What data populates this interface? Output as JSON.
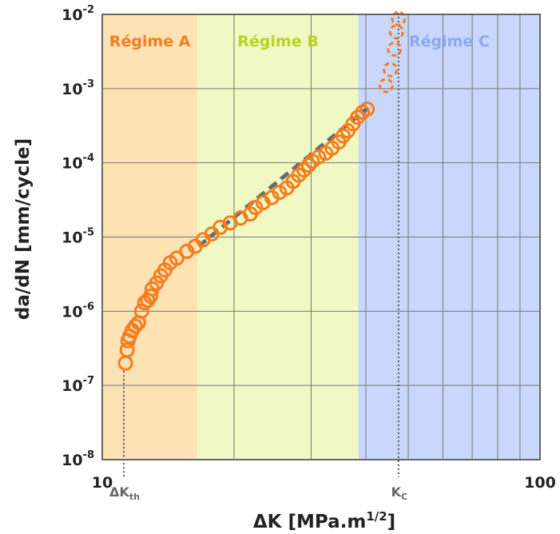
{
  "chart_data": {
    "type": "scatter",
    "xlabel": "ΔK [MPa.m1/2]",
    "ylabel": "da/dN [mm/cycle]",
    "x_scale": "log",
    "y_scale": "log",
    "xlim": [
      10,
      100
    ],
    "ylim": [
      1e-08,
      0.01
    ],
    "grid": true,
    "x_ticks": [
      {
        "value": 10,
        "label": "10"
      },
      {
        "value": 100,
        "label": "100"
      }
    ],
    "y_ticks": [
      {
        "value": 1e-08,
        "base": "10",
        "exp": "-8"
      },
      {
        "value": 1e-07,
        "base": "10",
        "exp": "-7"
      },
      {
        "value": 1e-06,
        "base": "10",
        "exp": "-6"
      },
      {
        "value": 1e-05,
        "base": "10",
        "exp": "-5"
      },
      {
        "value": 0.0001,
        "base": "10",
        "exp": "-4"
      },
      {
        "value": 0.001,
        "base": "10",
        "exp": "-3"
      },
      {
        "value": 0.01,
        "base": "10",
        "exp": "-2"
      }
    ],
    "regimes": [
      {
        "label": "Régime A",
        "x_from": 10,
        "x_to": 16.5,
        "color": "#fde2b4",
        "text_color": "#f57c1f"
      },
      {
        "label": "Régime B",
        "x_from": 16.5,
        "x_to": 38.5,
        "color": "#f0f9c3",
        "text_color": "#b9d21f"
      },
      {
        "label": "Régime C",
        "x_from": 38.5,
        "x_to": 100,
        "color": "#c8d7fb",
        "text_color": "#8aaaf0"
      }
    ],
    "markers": [
      {
        "label": "ΔK",
        "sub": "th",
        "x": 11.2
      },
      {
        "label": "K",
        "sub": "C",
        "x": 47.5
      }
    ],
    "series": [
      {
        "style": "solid",
        "color": "#f57c1f",
        "points": [
          [
            11.3,
            2e-07
          ],
          [
            11.4,
            3e-07
          ],
          [
            11.45,
            4e-07
          ],
          [
            11.55,
            4.6e-07
          ],
          [
            11.7,
            5.5e-07
          ],
          [
            11.9,
            6.3e-07
          ],
          [
            12.1,
            7e-07
          ],
          [
            12.3,
            1e-06
          ],
          [
            12.5,
            1.3e-06
          ],
          [
            12.7,
            1.4e-06
          ],
          [
            12.9,
            1.6e-06
          ],
          [
            13.0,
            2e-06
          ],
          [
            13.3,
            2.4e-06
          ],
          [
            13.6,
            3e-06
          ],
          [
            13.9,
            3.6e-06
          ],
          [
            14.3,
            4.5e-06
          ],
          [
            14.8,
            5.2e-06
          ],
          [
            15.6,
            6.4e-06
          ],
          [
            16.3,
            7.5e-06
          ],
          [
            17.0,
            9.2e-06
          ],
          [
            17.8,
            1.1e-05
          ],
          [
            18.6,
            1.35e-05
          ],
          [
            19.6,
            1.55e-05
          ],
          [
            20.7,
            1.8e-05
          ],
          [
            21.8,
            2.05e-05
          ],
          [
            22.4,
            2.5e-05
          ],
          [
            23.3,
            2.9e-05
          ],
          [
            24.4,
            3.4e-05
          ],
          [
            25.4,
            4e-05
          ],
          [
            26.4,
            4.6e-05
          ],
          [
            27.3,
            5.6e-05
          ],
          [
            28.1,
            6.8e-05
          ],
          [
            28.9,
            8e-05
          ],
          [
            29.6,
            9.3e-05
          ],
          [
            30.2,
            0.000105
          ],
          [
            31.2,
            0.00012
          ],
          [
            32.4,
            0.000135
          ],
          [
            33.5,
            0.000158
          ],
          [
            34.7,
            0.00019
          ],
          [
            35.5,
            0.00023
          ],
          [
            36.4,
            0.00027
          ],
          [
            37.4,
            0.000335
          ],
          [
            38.3,
            0.00041
          ],
          [
            39.3,
            0.00048
          ],
          [
            40.3,
            0.00053
          ]
        ]
      },
      {
        "style": "dashed",
        "color": "#f57c1f",
        "points": [
          [
            44.5,
            0.0011
          ],
          [
            45.5,
            0.0018
          ],
          [
            46.5,
            0.0034
          ],
          [
            47.0,
            0.0058
          ],
          [
            47.5,
            0.0088
          ]
        ]
      }
    ],
    "fit_line": {
      "style": "dashed",
      "color": "#6b6b6b",
      "points": [
        [
          16.6,
          7.5e-06
        ],
        [
          40.3,
          0.00054
        ]
      ]
    }
  }
}
